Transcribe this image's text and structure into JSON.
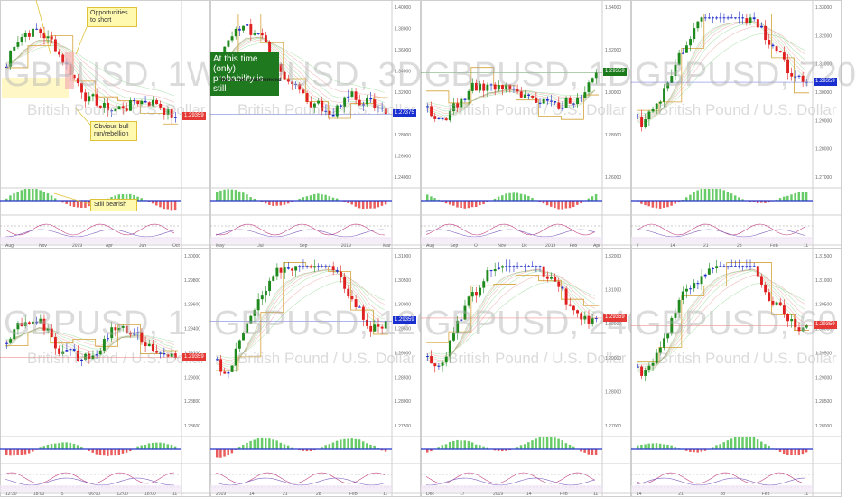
{
  "colors": {
    "up": "#1e8a1e",
    "down": "#e02020",
    "neutral": "#2030c8",
    "gold": "#d4a23a",
    "ribbon_red": "#e88a8a",
    "ribbon_green": "#7ccf7c",
    "price_red": "#e53935",
    "price_blue": "#1a2fd0",
    "price_green": "#1b7a1b"
  },
  "chart_data": [
    {
      "type": "candlestick",
      "symbol": "GBPUSD",
      "timeframe": "1W",
      "watermark": "GBPUSD, 1W",
      "subtitle": "British Pound / U.S. Dollar",
      "price_label": "1.29359",
      "price_color": "#e53935",
      "y_ticks": [],
      "x_ticks": [
        "Aug",
        "Nov",
        "2019",
        "Apr",
        "Jun",
        "Oct"
      ],
      "trend": "down",
      "annotations": [
        "Opportunities to short",
        "Obvious bull run/rebellion",
        "Still bearish"
      ]
    },
    {
      "type": "candlestick",
      "symbol": "GBPUSD",
      "timeframe": "3D",
      "watermark": "GBPUSD, 3D",
      "subtitle": "British Pound / U.S. Dollar",
      "price_label": "1.27375",
      "price_color": "#1a2fd0",
      "y_ticks": [
        "1.40000",
        "1.38000",
        "1.36000",
        "1.34000",
        "1.32000",
        "1.30000",
        "1.28000",
        "1.26000",
        "1.24000"
      ],
      "x_ticks": [
        "May",
        "Jul",
        "Sep",
        "2019",
        "Mar"
      ],
      "trend": "down",
      "annotations": [
        "At this time (only) probability is still",
        "This is not a recommend"
      ]
    },
    {
      "type": "candlestick",
      "symbol": "GBPUSD",
      "timeframe": "1D",
      "watermark": "GBPUSD, 1D",
      "subtitle": "British Pound / U.S. Dollar",
      "price_label": "1.29359",
      "price_color": "#1b7a1b",
      "y_ticks": [
        "1.34000",
        "1.32000",
        "1.30000",
        "1.28000",
        "1.26000"
      ],
      "x_ticks": [
        "Aug",
        "Sep",
        "O",
        "Nov",
        "Dc",
        "2019",
        "Feb",
        "Apr"
      ],
      "trend": "up",
      "annotations": []
    },
    {
      "type": "candlestick",
      "symbol": "GBPUSD",
      "timeframe": "720",
      "watermark": "GBPUSD, 720",
      "subtitle": "British Pound / U.S. Dollar",
      "price_label": "1.29359",
      "price_color": "#1a2fd0",
      "y_ticks": [
        "1.33000",
        "1.32000",
        "1.31000",
        "1.30000",
        "1.29000",
        "1.28000",
        "1.27000"
      ],
      "x_ticks": [
        "7",
        "14",
        "21",
        "28",
        "Feb",
        "11"
      ],
      "trend": "up_then_down",
      "annotations": []
    },
    {
      "type": "candlestick",
      "symbol": "GBPUSD",
      "timeframe": "1",
      "watermark": "GBPUSD, 1",
      "subtitle": "British Pound / U.S. Dollar",
      "price_label": "1.29359",
      "price_color": "#e53935",
      "y_ticks": [
        "1.30000",
        "1.29800",
        "1.29600",
        "1.29400",
        "1.29200",
        "1.29000",
        "1.28800",
        "1.28600"
      ],
      "x_ticks": [
        "12:30",
        "18:00",
        "5",
        "06:00",
        "12:00",
        "18:00",
        "11"
      ],
      "trend": "flat",
      "annotations": []
    },
    {
      "type": "candlestick",
      "symbol": "GBPUSD",
      "timeframe": "120",
      "watermark": "GBPUSD, 120",
      "subtitle": "British Pound / U.S. Dollar",
      "price_label": "1.29359",
      "price_color": "#1a2fd0",
      "y_ticks": [
        "1.31000",
        "1.30500",
        "1.30000",
        "1.29500",
        "1.29000",
        "1.28500",
        "1.28000",
        "1.27500"
      ],
      "x_ticks": [
        "2019",
        "14",
        "21",
        "28",
        "Feb",
        "11"
      ],
      "trend": "up_then_down",
      "annotations": []
    },
    {
      "type": "candlestick",
      "symbol": "GBPUSD",
      "timeframe": "240",
      "watermark": "GBPUSD, 240",
      "subtitle": "British Pound / U.S. Dollar",
      "price_label": "1.29359",
      "price_color": "#e53935",
      "y_ticks": [
        "1.32000",
        "1.31000",
        "1.30000",
        "1.29000",
        "1.28000",
        "1.27000"
      ],
      "x_ticks": [
        "Dec",
        "17",
        "2019",
        "14",
        "Feb",
        "11"
      ],
      "trend": "up_then_down",
      "annotations": []
    },
    {
      "type": "candlestick",
      "symbol": "GBPUSD",
      "timeframe": "60",
      "watermark": "GBPUSD, 60",
      "subtitle": "British Pound / U.S. Dollar",
      "price_label": "1.29359",
      "price_color": "#e53935",
      "y_ticks": [
        "1.31500",
        "1.31000",
        "1.30500",
        "1.30000",
        "1.29500",
        "1.29000",
        "1.28500",
        "1.28000"
      ],
      "x_ticks": [
        "14",
        "21",
        "28",
        "Feb",
        "11"
      ],
      "trend": "up_then_down",
      "annotations": []
    }
  ]
}
